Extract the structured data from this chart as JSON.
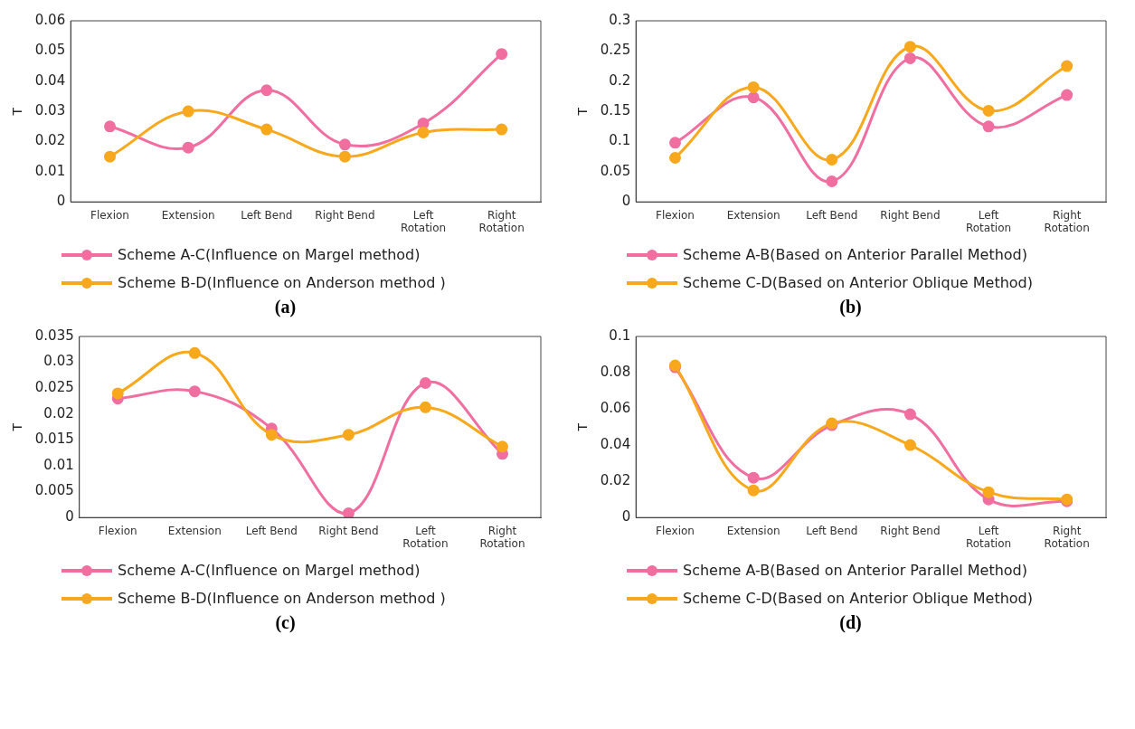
{
  "chart_data": [
    {
      "type": "line",
      "ylabel": "T",
      "categories": [
        "Flexion",
        "Extension",
        "Left Bend",
        "Right Bend",
        "Left Rotation",
        "Right Rotation"
      ],
      "ylim": [
        0,
        0.06
      ],
      "yticks": [
        0,
        0.01,
        0.02,
        0.03,
        0.04,
        0.05,
        0.06
      ],
      "grid": false,
      "legend": "bottom",
      "marker": "circle",
      "annotations": [
        "(a)"
      ],
      "series": [
        {
          "name": "Scheme A-C(Influence on Margel method)",
          "color": "#f06ea0",
          "values": [
            0.025,
            0.018,
            0.037,
            0.019,
            0.026,
            0.049
          ]
        },
        {
          "name": "Scheme B-D(Influence on Anderson method )",
          "color": "#f8a81c",
          "values": [
            0.015,
            0.03,
            0.024,
            0.015,
            0.023,
            0.024
          ]
        }
      ]
    },
    {
      "type": "line",
      "ylabel": "T",
      "categories": [
        "Flexion",
        "Extension",
        "Left Bend",
        "Right Bend",
        "Left Rotation",
        "Right Rotation"
      ],
      "ylim": [
        0,
        0.3
      ],
      "yticks": [
        0,
        0.05,
        0.1,
        0.15,
        0.2,
        0.25,
        0.3
      ],
      "grid": false,
      "legend": "bottom",
      "marker": "circle",
      "annotations": [
        "(b)"
      ],
      "series": [
        {
          "name": "Scheme A-B(Based on Anterior Parallel Method)",
          "color": "#f06ea0",
          "values": [
            0.098,
            0.173,
            0.034,
            0.238,
            0.125,
            0.177
          ]
        },
        {
          "name": "Scheme C-D(Based on Anterior Oblique Method)",
          "color": "#f8a81c",
          "values": [
            0.073,
            0.19,
            0.07,
            0.257,
            0.151,
            0.225
          ]
        }
      ]
    },
    {
      "type": "line",
      "ylabel": "T",
      "categories": [
        "Flexion",
        "Extension",
        "Left Bend",
        "Right Bend",
        "Left Rotation",
        "Right Rotation"
      ],
      "ylim": [
        0,
        0.035
      ],
      "yticks": [
        0,
        0.005,
        0.01,
        0.015,
        0.02,
        0.025,
        0.03,
        0.035
      ],
      "grid": false,
      "legend": "bottom",
      "marker": "circle",
      "annotations": [
        "(c)"
      ],
      "series": [
        {
          "name": "Scheme A-C(Influence on Margel method)",
          "color": "#f06ea0",
          "values": [
            0.023,
            0.0244,
            0.0172,
            0.0008,
            0.026,
            0.0123
          ]
        },
        {
          "name": "Scheme B-D(Influence on Anderson method )",
          "color": "#f8a81c",
          "values": [
            0.024,
            0.0318,
            0.016,
            0.016,
            0.0213,
            0.0137
          ]
        }
      ]
    },
    {
      "type": "line",
      "ylabel": "T",
      "categories": [
        "Flexion",
        "Extension",
        "Left Bend",
        "Right Bend",
        "Left Rotation",
        "Right Rotation"
      ],
      "ylim": [
        0,
        0.1
      ],
      "yticks": [
        0,
        0.02,
        0.04,
        0.06,
        0.08,
        0.1
      ],
      "grid": false,
      "legend": "bottom",
      "marker": "circle",
      "annotations": [
        "(d)"
      ],
      "series": [
        {
          "name": "Scheme A-B(Based on Anterior Parallel Method)",
          "color": "#f06ea0",
          "values": [
            0.083,
            0.022,
            0.051,
            0.057,
            0.01,
            0.009
          ]
        },
        {
          "name": "Scheme C-D(Based on Anterior Oblique Method)",
          "color": "#f8a81c",
          "values": [
            0.084,
            0.015,
            0.052,
            0.04,
            0.014,
            0.01
          ]
        }
      ]
    }
  ]
}
